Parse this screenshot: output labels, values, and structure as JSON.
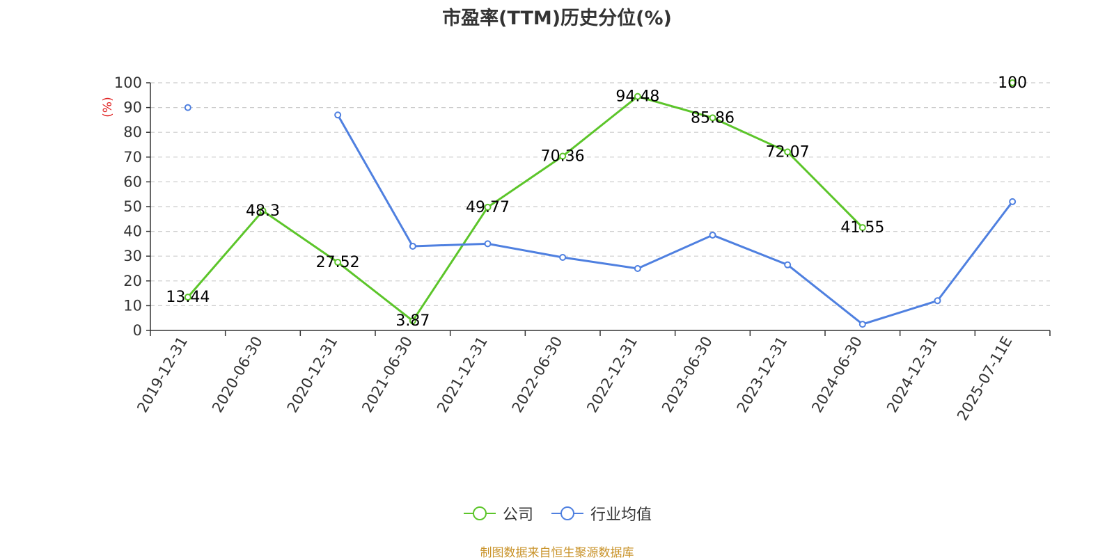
{
  "chart_data": {
    "type": "line",
    "title": "市盈率(TTM)历史分位(%)",
    "ylabel": "(%)",
    "xlabel": "",
    "ylim": [
      0,
      100
    ],
    "yticks": [
      0,
      10,
      20,
      30,
      40,
      50,
      60,
      70,
      80,
      90,
      100
    ],
    "grid": true,
    "legend_position": "bottom-center",
    "categories": [
      "2019-12-31",
      "2020-06-30",
      "2020-12-31",
      "2021-06-30",
      "2021-12-31",
      "2022-06-30",
      "2022-12-31",
      "2023-06-30",
      "2023-12-31",
      "2024-06-30",
      "2024-12-31",
      "2025-07-11E"
    ],
    "series": [
      {
        "name": "公司",
        "color": "#5cc52a",
        "values": [
          13.44,
          48.3,
          27.52,
          3.87,
          49.77,
          70.36,
          94.48,
          85.86,
          72.07,
          41.55,
          null,
          100
        ],
        "labels": [
          "13.44",
          "48.3",
          "27.52",
          "3.87",
          "49.77",
          "70.36",
          "94.48",
          "85.86",
          "72.07",
          "41.55",
          "",
          "100"
        ]
      },
      {
        "name": "行业均值",
        "color": "#4f80e0",
        "values": [
          90,
          null,
          87,
          34,
          35,
          29.5,
          25,
          38.5,
          26.5,
          2.5,
          12,
          52
        ]
      }
    ]
  },
  "source_note": "制图数据来自恒生聚源数据库"
}
